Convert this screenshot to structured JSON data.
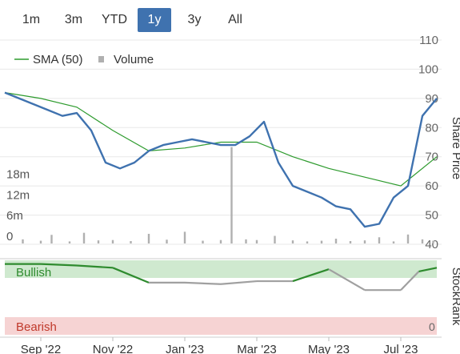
{
  "range_buttons": [
    {
      "label": "1m",
      "active": false
    },
    {
      "label": "3m",
      "active": false
    },
    {
      "label": "YTD",
      "active": false
    },
    {
      "label": "1y",
      "active": true
    },
    {
      "label": "3y",
      "active": false
    },
    {
      "label": "All",
      "active": false
    }
  ],
  "legend": {
    "sma_label": "SMA (50)",
    "volume_label": "Volume"
  },
  "colors": {
    "price": "#3f72af",
    "sma": "#2e9b2e",
    "volume": "#b0b0b0",
    "bullish_band": "#cfe9cf",
    "bearish_band": "#f6d3d3",
    "bullish_text": "#2e8b2e",
    "bearish_text": "#c0392b",
    "active_button": "#3f72af"
  },
  "right_axis_label": "Share Price",
  "rank_axis_label": "StockRank",
  "rank_scale_label": "0",
  "bullish_label": "Bullish",
  "bearish_label": "Bearish",
  "chart_data": {
    "type": "line",
    "x_ticks": [
      "Sep '22",
      "Nov '22",
      "Jan '23",
      "Mar '23",
      "May '23",
      "Jul '23"
    ],
    "price_ticks": [
      "110",
      "100",
      "90",
      "80",
      "70",
      "60",
      "50",
      "40"
    ],
    "price_ylim": [
      40,
      110
    ],
    "volume_ticks": [
      "18m",
      "12m",
      "6m",
      "0"
    ],
    "volume_ylim": [
      0,
      30
    ],
    "series": [
      {
        "name": "Share Price",
        "x": [
          0,
          0.4,
          0.8,
          1.2,
          1.6,
          2,
          2.4,
          2.8,
          3.2,
          3.6,
          4,
          4.4,
          4.8,
          5.2,
          5.6,
          6,
          6.4,
          6.8,
          7.2,
          7.6,
          8,
          8.4,
          8.8,
          9.2,
          9.6,
          10,
          10.4,
          10.8,
          11.2,
          11.6,
          12
        ],
        "values": [
          92,
          90,
          88,
          86,
          84,
          85,
          79,
          68,
          66,
          68,
          72,
          74,
          75,
          76,
          75,
          74,
          74,
          77,
          82,
          68,
          60,
          58,
          56,
          53,
          52,
          46,
          47,
          56,
          60,
          84,
          90
        ]
      },
      {
        "name": "SMA (50)",
        "x": [
          0,
          1,
          2,
          3,
          4,
          5,
          6,
          7,
          8,
          9,
          10,
          11,
          12
        ],
        "values": [
          92,
          90,
          87,
          79,
          72,
          73,
          75,
          75,
          70,
          66,
          63,
          60,
          70
        ]
      },
      {
        "name": "Volume",
        "x": [
          0.5,
          1.0,
          1.3,
          1.8,
          2.2,
          2.6,
          3.0,
          3.5,
          4.0,
          4.5,
          5.0,
          5.5,
          6.0,
          6.3,
          6.7,
          7.0,
          7.5,
          8.0,
          8.4,
          8.8,
          9.2,
          9.6,
          10.0,
          10.4,
          10.8,
          11.2,
          11.6,
          11.9
        ],
        "values": [
          1.2,
          0.8,
          2.5,
          0.6,
          3.1,
          0.9,
          1.0,
          0.7,
          2.8,
          1.1,
          3.4,
          0.8,
          1.0,
          28.0,
          1.2,
          1.0,
          2.2,
          0.9,
          0.6,
          0.8,
          1.4,
          0.7,
          0.9,
          1.8,
          0.6,
          2.6,
          1.2,
          0.8
        ]
      }
    ],
    "stockrank": {
      "x": [
        0,
        1,
        2,
        3,
        4,
        5,
        6,
        7,
        8,
        9,
        10,
        11,
        11.5,
        12
      ],
      "values": [
        95,
        95,
        93,
        90,
        70,
        70,
        68,
        72,
        72,
        88,
        60,
        60,
        85,
        90
      ]
    }
  }
}
